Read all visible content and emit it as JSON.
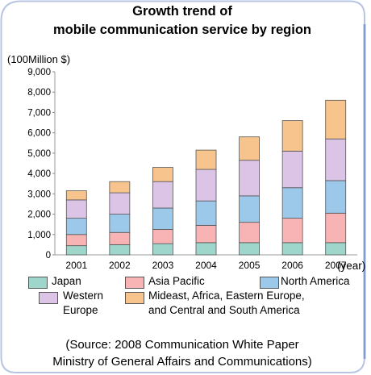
{
  "title_line1": "Growth trend of",
  "title_line2": "mobile communication service by region",
  "unit_label": "(100Million $)",
  "source_line1": "(Source: 2008 Communication White Paper",
  "source_line2": "Ministry of General Affairs and Communications)",
  "colors": {
    "japan": "#9fd6cc",
    "asia_pacific": "#f8b4b4",
    "north_america": "#9cc8ea",
    "western_europe": "#dcc4e6",
    "mideast_etc": "#f6c48c",
    "border": "#b7c5e3"
  },
  "chart_data": {
    "type": "bar",
    "stacked": true,
    "categories": [
      "2001",
      "2002",
      "2003",
      "2004",
      "2005",
      "2006",
      "2007"
    ],
    "x_unit_label": "(year)",
    "ylim": [
      0,
      9000
    ],
    "yticks": [
      "0",
      "1,000",
      "2,000",
      "3,000",
      "4,000",
      "5,000",
      "6,000",
      "7,000",
      "8,000",
      "9,000"
    ],
    "series": [
      {
        "name": "Japan",
        "values": [
          450,
          500,
          550,
          600,
          600,
          600,
          600
        ]
      },
      {
        "name": "Asia Pacific",
        "values": [
          550,
          600,
          700,
          850,
          1000,
          1200,
          1450
        ]
      },
      {
        "name": "North America",
        "values": [
          800,
          900,
          1050,
          1200,
          1300,
          1500,
          1600
        ]
      },
      {
        "name": "Western Europe",
        "values": [
          900,
          1050,
          1300,
          1550,
          1750,
          1800,
          2050
        ]
      },
      {
        "name": "Mideast, Africa, Eastern Europe, and Central and South America",
        "values": [
          450,
          550,
          700,
          950,
          1150,
          1500,
          1900
        ]
      }
    ],
    "legend": {
      "japan": "Japan",
      "asia_pacific": "Asia Pacific",
      "north_america": "North America",
      "western_europe_1": "Western",
      "western_europe_2": "Europe",
      "mideast_1": "Mideast, Africa, Eastern Europe,",
      "mideast_2": "and Central and South America"
    }
  }
}
